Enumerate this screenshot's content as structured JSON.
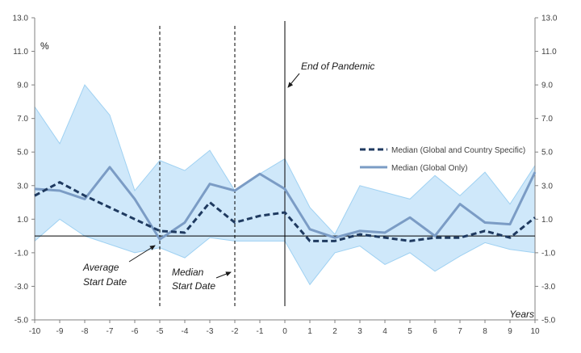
{
  "chart_data": {
    "type": "line",
    "ylabel": "%",
    "xlabel": "Years",
    "x": [
      -10,
      -9,
      -8,
      -7,
      -6,
      -5,
      -4,
      -3,
      -2,
      -1,
      0,
      1,
      2,
      3,
      4,
      5,
      6,
      7,
      8,
      9,
      10
    ],
    "ylim": [
      -5.0,
      13.0
    ],
    "yticks": [
      "-5.0",
      "-3.0",
      "-1.0",
      "1.0",
      "3.0",
      "5.0",
      "7.0",
      "9.0",
      "11.0",
      "13.0"
    ],
    "band": {
      "upper": [
        7.7,
        5.5,
        9.0,
        7.2,
        2.7,
        4.5,
        3.9,
        5.1,
        2.7,
        3.7,
        4.6,
        1.7,
        0.1,
        3.0,
        2.6,
        2.2,
        3.6,
        2.4,
        3.8,
        1.9,
        4.2
      ],
      "lower": [
        -0.3,
        1.0,
        0.0,
        -0.5,
        -1.0,
        -0.7,
        -1.3,
        -0.1,
        -0.3,
        -0.3,
        -0.3,
        -2.9,
        -1.0,
        -0.6,
        -1.7,
        -1.0,
        -2.1,
        -1.2,
        -0.4,
        -0.8,
        -1.0
      ],
      "color": "#cfe8fa",
      "edge": "#9fd1f2"
    },
    "series": [
      {
        "name": "Median (Global and Country Specific)",
        "values": [
          2.4,
          3.2,
          2.4,
          1.7,
          1.0,
          0.3,
          0.2,
          2.0,
          0.8,
          1.2,
          1.4,
          -0.3,
          -0.3,
          0.1,
          -0.1,
          -0.3,
          -0.1,
          -0.1,
          0.3,
          -0.1,
          1.1
        ],
        "color": "#1f3a60",
        "style": "dashed"
      },
      {
        "name": "Median (Global Only)",
        "values": [
          2.8,
          2.7,
          2.2,
          4.1,
          2.2,
          -0.2,
          0.8,
          3.1,
          2.7,
          3.7,
          2.8,
          0.4,
          -0.1,
          0.3,
          0.2,
          1.1,
          0.0,
          1.9,
          0.8,
          0.7,
          3.8
        ],
        "color": "#7b9cc5",
        "style": "solid"
      }
    ],
    "vlines": [
      {
        "x": -5,
        "style": "dashed"
      },
      {
        "x": -2,
        "style": "dashed"
      },
      {
        "x": 0,
        "style": "solid"
      }
    ],
    "annotations": [
      {
        "id": "end-pandemic",
        "lines": [
          "End of Pandemic"
        ]
      },
      {
        "id": "average-start",
        "lines": [
          "Average",
          "Start Date"
        ]
      },
      {
        "id": "median-start",
        "lines": [
          "Median",
          "Start Date"
        ]
      }
    ],
    "legend_position": "right"
  }
}
